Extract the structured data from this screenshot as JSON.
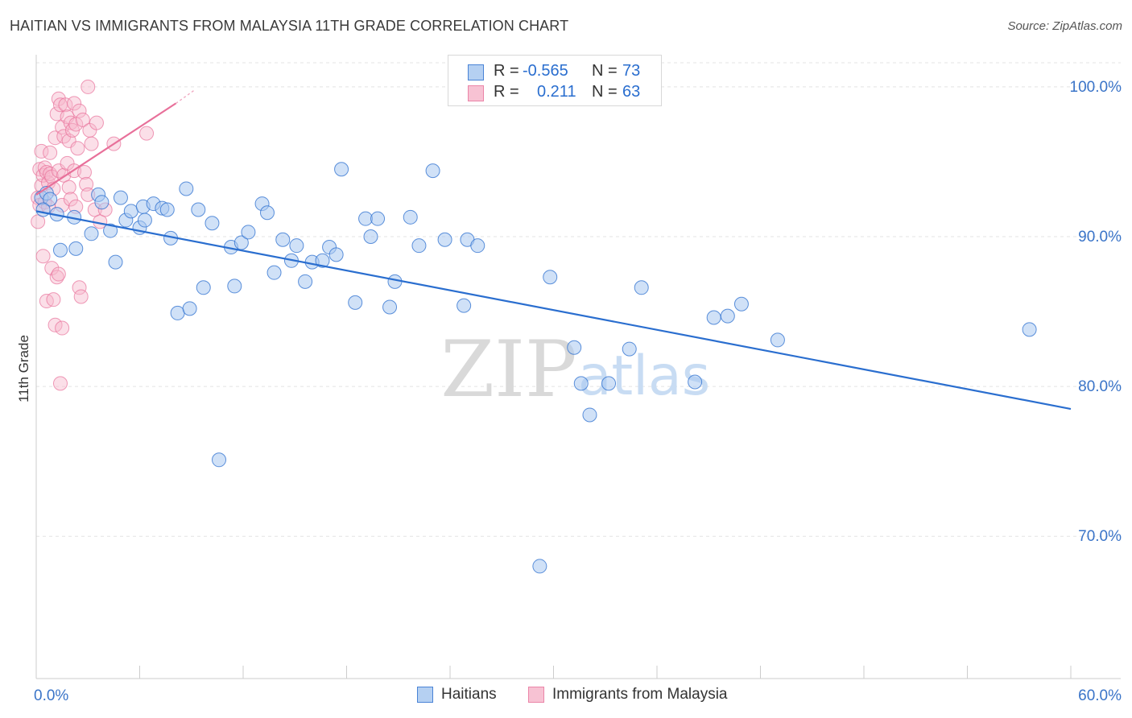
{
  "header": {
    "title": "HAITIAN VS IMMIGRANTS FROM MALAYSIA 11TH GRADE CORRELATION CHART",
    "source": "Source: ZipAtlas.com"
  },
  "colors": {
    "blue": "#2a6ecf",
    "blue_fill": "#a9c8f0",
    "pink": "#e8709a",
    "pink_fill": "#f6b8cc",
    "grid": "#e3e3e3",
    "axis_text": "#3a74c8"
  },
  "legend": {
    "rows": [
      {
        "r_label": "R =",
        "r_value": "-0.565",
        "n_label": "N =",
        "n_value": "73"
      },
      {
        "r_label": "R =",
        "r_value": "0.211",
        "n_label": "N =",
        "n_value": "63"
      }
    ]
  },
  "bottom_legend": {
    "haitians": "Haitians",
    "malaysia": "Immigrants from Malaysia"
  },
  "watermark": {
    "zip": "ZIP",
    "atlas": "atlas"
  },
  "chart_data": {
    "type": "scatter",
    "title": "HAITIAN VS IMMIGRANTS FROM MALAYSIA 11TH GRADE CORRELATION CHART",
    "xlabel": "",
    "ylabel": "11th Grade",
    "xlim": [
      0,
      60
    ],
    "ylim": [
      60.5,
      101.5
    ],
    "x_tick_labels": [
      "0.0%",
      "60.0%"
    ],
    "y_ticks": [
      70,
      80,
      90,
      100
    ],
    "y_tick_labels": [
      "70.0%",
      "80.0%",
      "90.0%",
      "100.0%"
    ],
    "series": [
      {
        "name": "Haitians",
        "color": "#2a6ecf",
        "R": -0.565,
        "N": 73,
        "trend": {
          "x": [
            0,
            60
          ],
          "y": [
            91.7,
            78.5
          ]
        },
        "points": [
          [
            0.3,
            92.6
          ],
          [
            0.6,
            92.9
          ],
          [
            0.8,
            92.5
          ],
          [
            1.2,
            91.5
          ],
          [
            1.4,
            89.1
          ],
          [
            2.2,
            91.3
          ],
          [
            2.3,
            89.2
          ],
          [
            3.2,
            90.2
          ],
          [
            3.6,
            92.8
          ],
          [
            3.8,
            92.3
          ],
          [
            4.3,
            90.4
          ],
          [
            4.6,
            88.3
          ],
          [
            4.9,
            92.6
          ],
          [
            5.2,
            91.1
          ],
          [
            5.5,
            91.7
          ],
          [
            6.0,
            90.6
          ],
          [
            6.2,
            92.0
          ],
          [
            6.3,
            91.1
          ],
          [
            6.8,
            92.2
          ],
          [
            7.3,
            91.9
          ],
          [
            7.6,
            91.8
          ],
          [
            7.8,
            89.9
          ],
          [
            8.2,
            84.9
          ],
          [
            8.7,
            93.2
          ],
          [
            8.9,
            85.2
          ],
          [
            9.4,
            91.8
          ],
          [
            9.7,
            86.6
          ],
          [
            10.2,
            90.9
          ],
          [
            10.6,
            75.1
          ],
          [
            11.3,
            89.3
          ],
          [
            11.5,
            86.7
          ],
          [
            11.9,
            89.6
          ],
          [
            12.3,
            90.3
          ],
          [
            13.1,
            92.2
          ],
          [
            13.4,
            91.6
          ],
          [
            13.8,
            87.6
          ],
          [
            14.3,
            89.8
          ],
          [
            14.8,
            88.4
          ],
          [
            15.1,
            89.4
          ],
          [
            15.6,
            87.0
          ],
          [
            16.0,
            88.3
          ],
          [
            16.6,
            88.4
          ],
          [
            17.0,
            89.3
          ],
          [
            17.4,
            88.8
          ],
          [
            17.7,
            94.5
          ],
          [
            18.5,
            85.6
          ],
          [
            19.1,
            91.2
          ],
          [
            19.4,
            90.0
          ],
          [
            19.8,
            91.2
          ],
          [
            20.5,
            85.3
          ],
          [
            20.8,
            87.0
          ],
          [
            21.7,
            91.3
          ],
          [
            22.2,
            89.4
          ],
          [
            23.0,
            94.4
          ],
          [
            23.7,
            89.8
          ],
          [
            24.8,
            85.4
          ],
          [
            25.0,
            89.8
          ],
          [
            25.6,
            89.4
          ],
          [
            29.2,
            68.0
          ],
          [
            29.8,
            87.3
          ],
          [
            31.2,
            82.6
          ],
          [
            31.6,
            80.2
          ],
          [
            32.1,
            78.1
          ],
          [
            33.2,
            80.2
          ],
          [
            34.4,
            82.5
          ],
          [
            35.1,
            86.6
          ],
          [
            38.2,
            80.3
          ],
          [
            39.3,
            84.6
          ],
          [
            40.1,
            84.7
          ],
          [
            40.9,
            85.5
          ],
          [
            43.0,
            83.1
          ],
          [
            57.6,
            83.8
          ],
          [
            0.4,
            91.8
          ]
        ]
      },
      {
        "name": "Immigrants from Malaysia",
        "color": "#e8709a",
        "R": 0.211,
        "N": 63,
        "trend": {
          "x": [
            0,
            8.1
          ],
          "y": [
            92.8,
            98.9
          ]
        },
        "trend_dashed_to": {
          "x": 9.2,
          "y": 99.8
        },
        "points": [
          [
            0.1,
            92.6
          ],
          [
            0.1,
            91.0
          ],
          [
            0.2,
            94.5
          ],
          [
            0.2,
            92.1
          ],
          [
            0.3,
            95.7
          ],
          [
            0.3,
            93.4
          ],
          [
            0.4,
            94.1
          ],
          [
            0.4,
            88.7
          ],
          [
            0.5,
            94.6
          ],
          [
            0.5,
            92.3
          ],
          [
            0.6,
            94.3
          ],
          [
            0.6,
            85.7
          ],
          [
            0.7,
            93.6
          ],
          [
            0.7,
            92.0
          ],
          [
            0.8,
            95.6
          ],
          [
            0.8,
            94.2
          ],
          [
            0.9,
            87.9
          ],
          [
            0.9,
            94.0
          ],
          [
            1.0,
            93.2
          ],
          [
            1.0,
            85.8
          ],
          [
            1.1,
            96.6
          ],
          [
            1.1,
            84.1
          ],
          [
            1.2,
            98.2
          ],
          [
            1.2,
            87.3
          ],
          [
            1.3,
            99.2
          ],
          [
            1.3,
            94.4
          ],
          [
            1.3,
            87.5
          ],
          [
            1.4,
            98.8
          ],
          [
            1.4,
            80.2
          ],
          [
            1.5,
            97.3
          ],
          [
            1.5,
            92.1
          ],
          [
            1.5,
            83.9
          ],
          [
            1.6,
            96.7
          ],
          [
            1.6,
            94.1
          ],
          [
            1.7,
            98.8
          ],
          [
            1.8,
            98.0
          ],
          [
            1.8,
            94.9
          ],
          [
            1.9,
            96.4
          ],
          [
            1.9,
            93.3
          ],
          [
            2.0,
            97.6
          ],
          [
            2.0,
            92.5
          ],
          [
            2.1,
            97.1
          ],
          [
            2.2,
            98.9
          ],
          [
            2.2,
            94.4
          ],
          [
            2.3,
            97.5
          ],
          [
            2.3,
            92.0
          ],
          [
            2.4,
            95.9
          ],
          [
            2.5,
            86.6
          ],
          [
            2.5,
            98.4
          ],
          [
            2.6,
            86.0
          ],
          [
            2.7,
            97.8
          ],
          [
            2.8,
            94.3
          ],
          [
            2.9,
            93.5
          ],
          [
            3.0,
            92.8
          ],
          [
            3.0,
            100.0
          ],
          [
            3.1,
            97.1
          ],
          [
            3.2,
            96.2
          ],
          [
            3.4,
            91.8
          ],
          [
            3.5,
            97.6
          ],
          [
            3.7,
            91.0
          ],
          [
            4.0,
            91.8
          ],
          [
            4.5,
            96.2
          ],
          [
            6.4,
            96.9
          ]
        ]
      }
    ]
  }
}
